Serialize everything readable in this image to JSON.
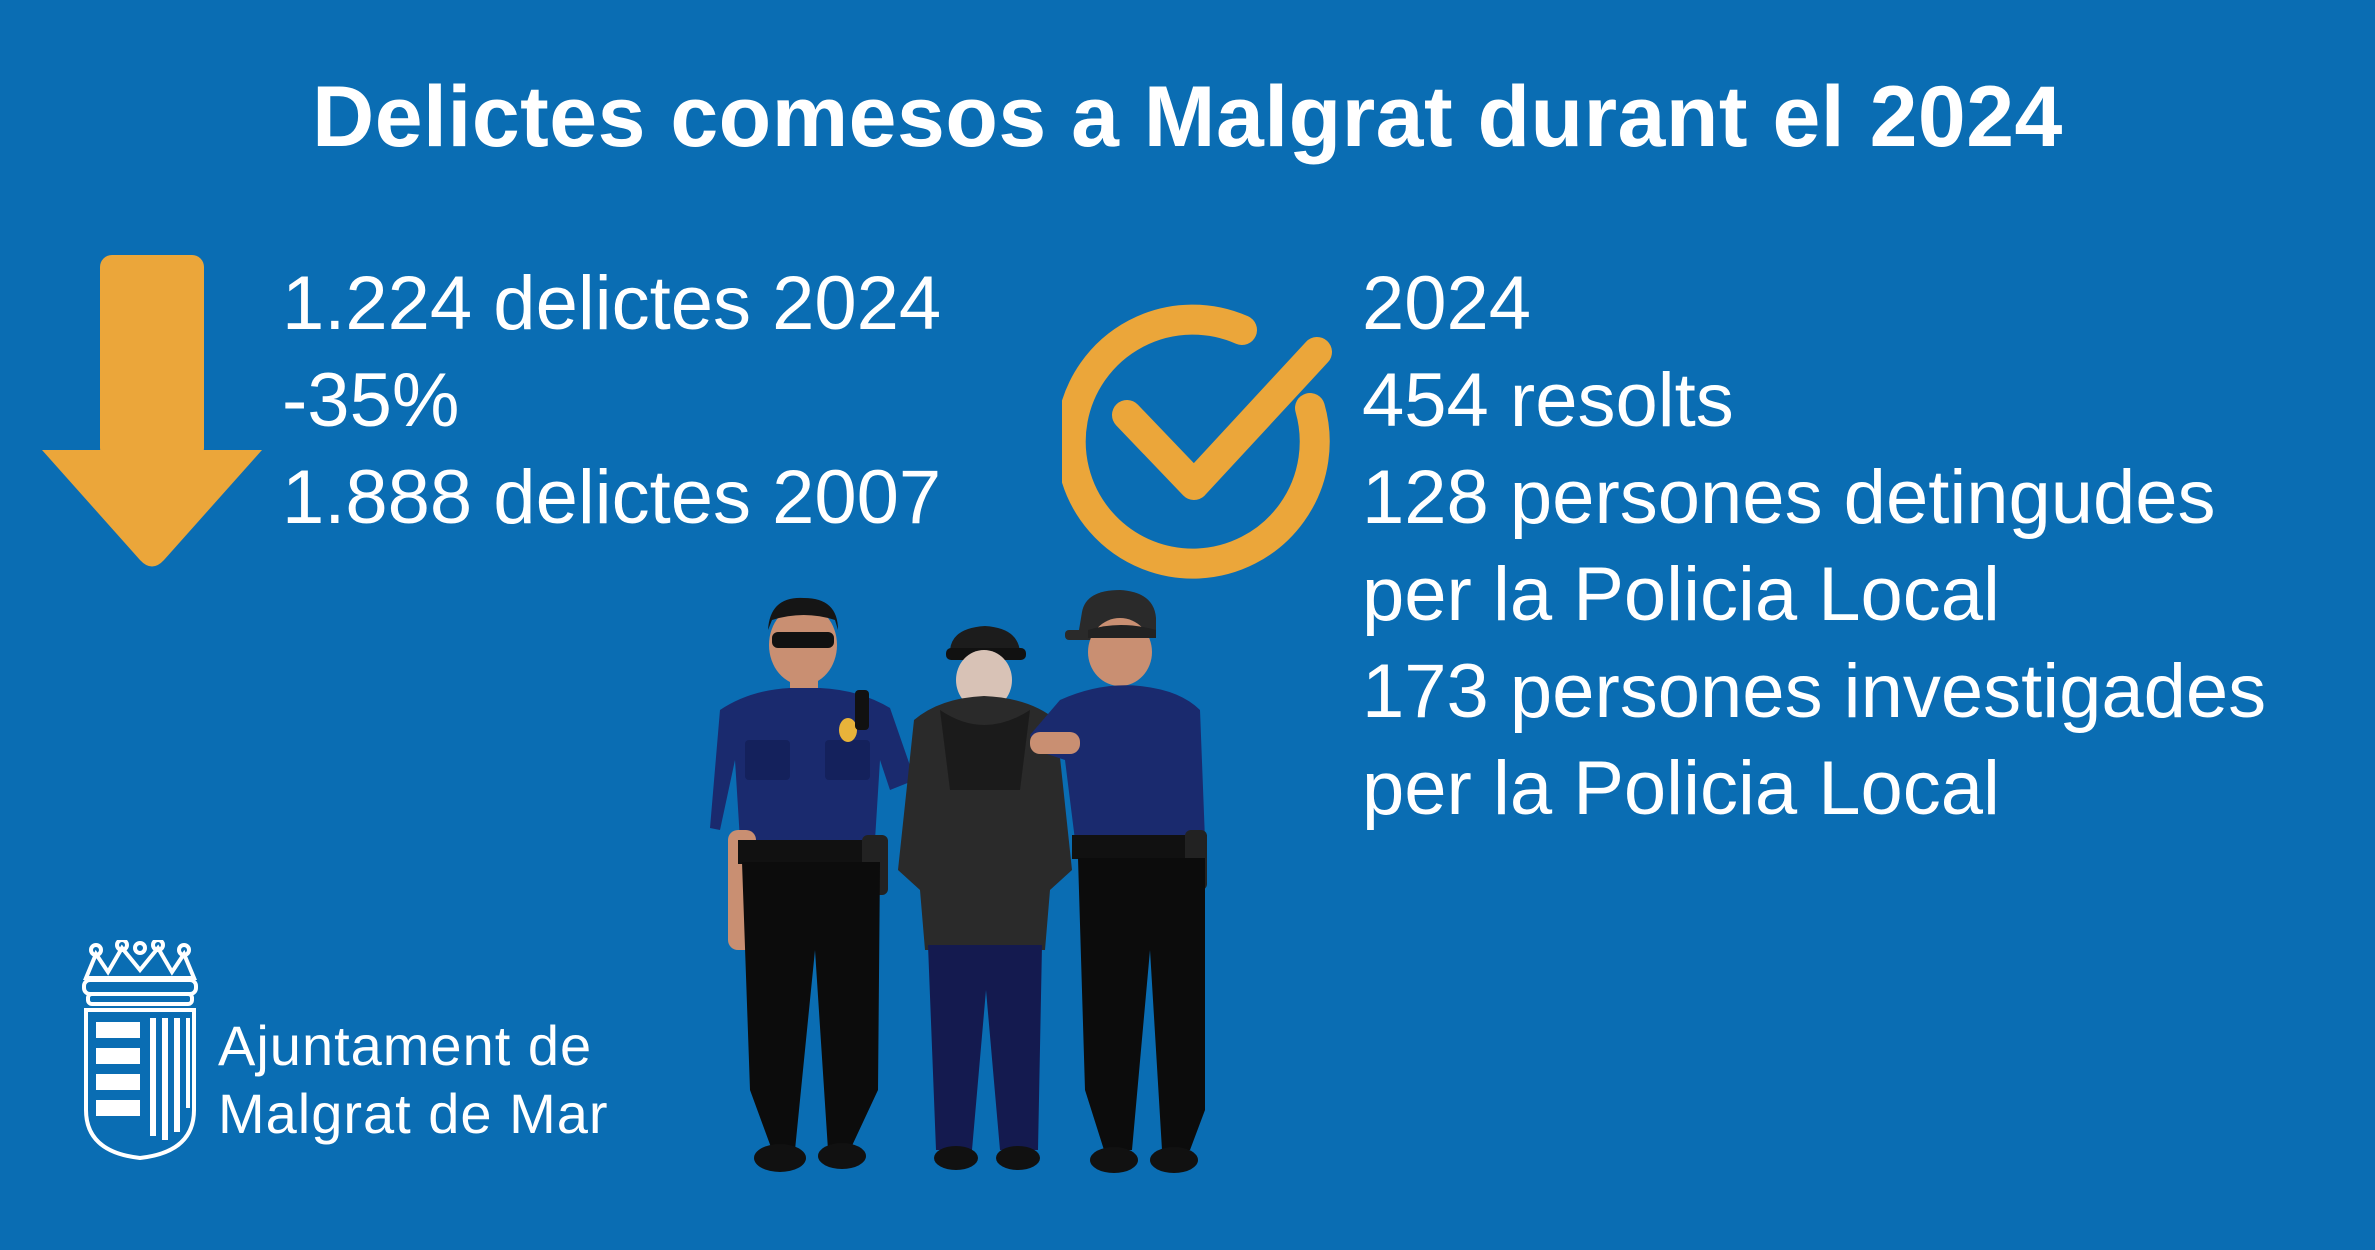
{
  "title": "Delictes comesos a Malgrat durant el 2024",
  "left_stats": {
    "line1": "1.224 delictes 2024",
    "line2": "-35%",
    "line3": "1.888 delictes 2007",
    "icon": "down-arrow-icon"
  },
  "right_stats": {
    "line1": "2024",
    "line2": "454 resolts",
    "line3": "128 persones detingudes",
    "line4": "per la Policia Local",
    "line5": "173 persones investigades",
    "line6": "per la Policia Local",
    "icon": "checkmark-circle-icon"
  },
  "organization": {
    "line1": "Ajuntament de",
    "line2": "Malgrat de Mar"
  },
  "colors": {
    "background": "#0a6db3",
    "accent": "#eba63a",
    "text": "#ffffff"
  }
}
